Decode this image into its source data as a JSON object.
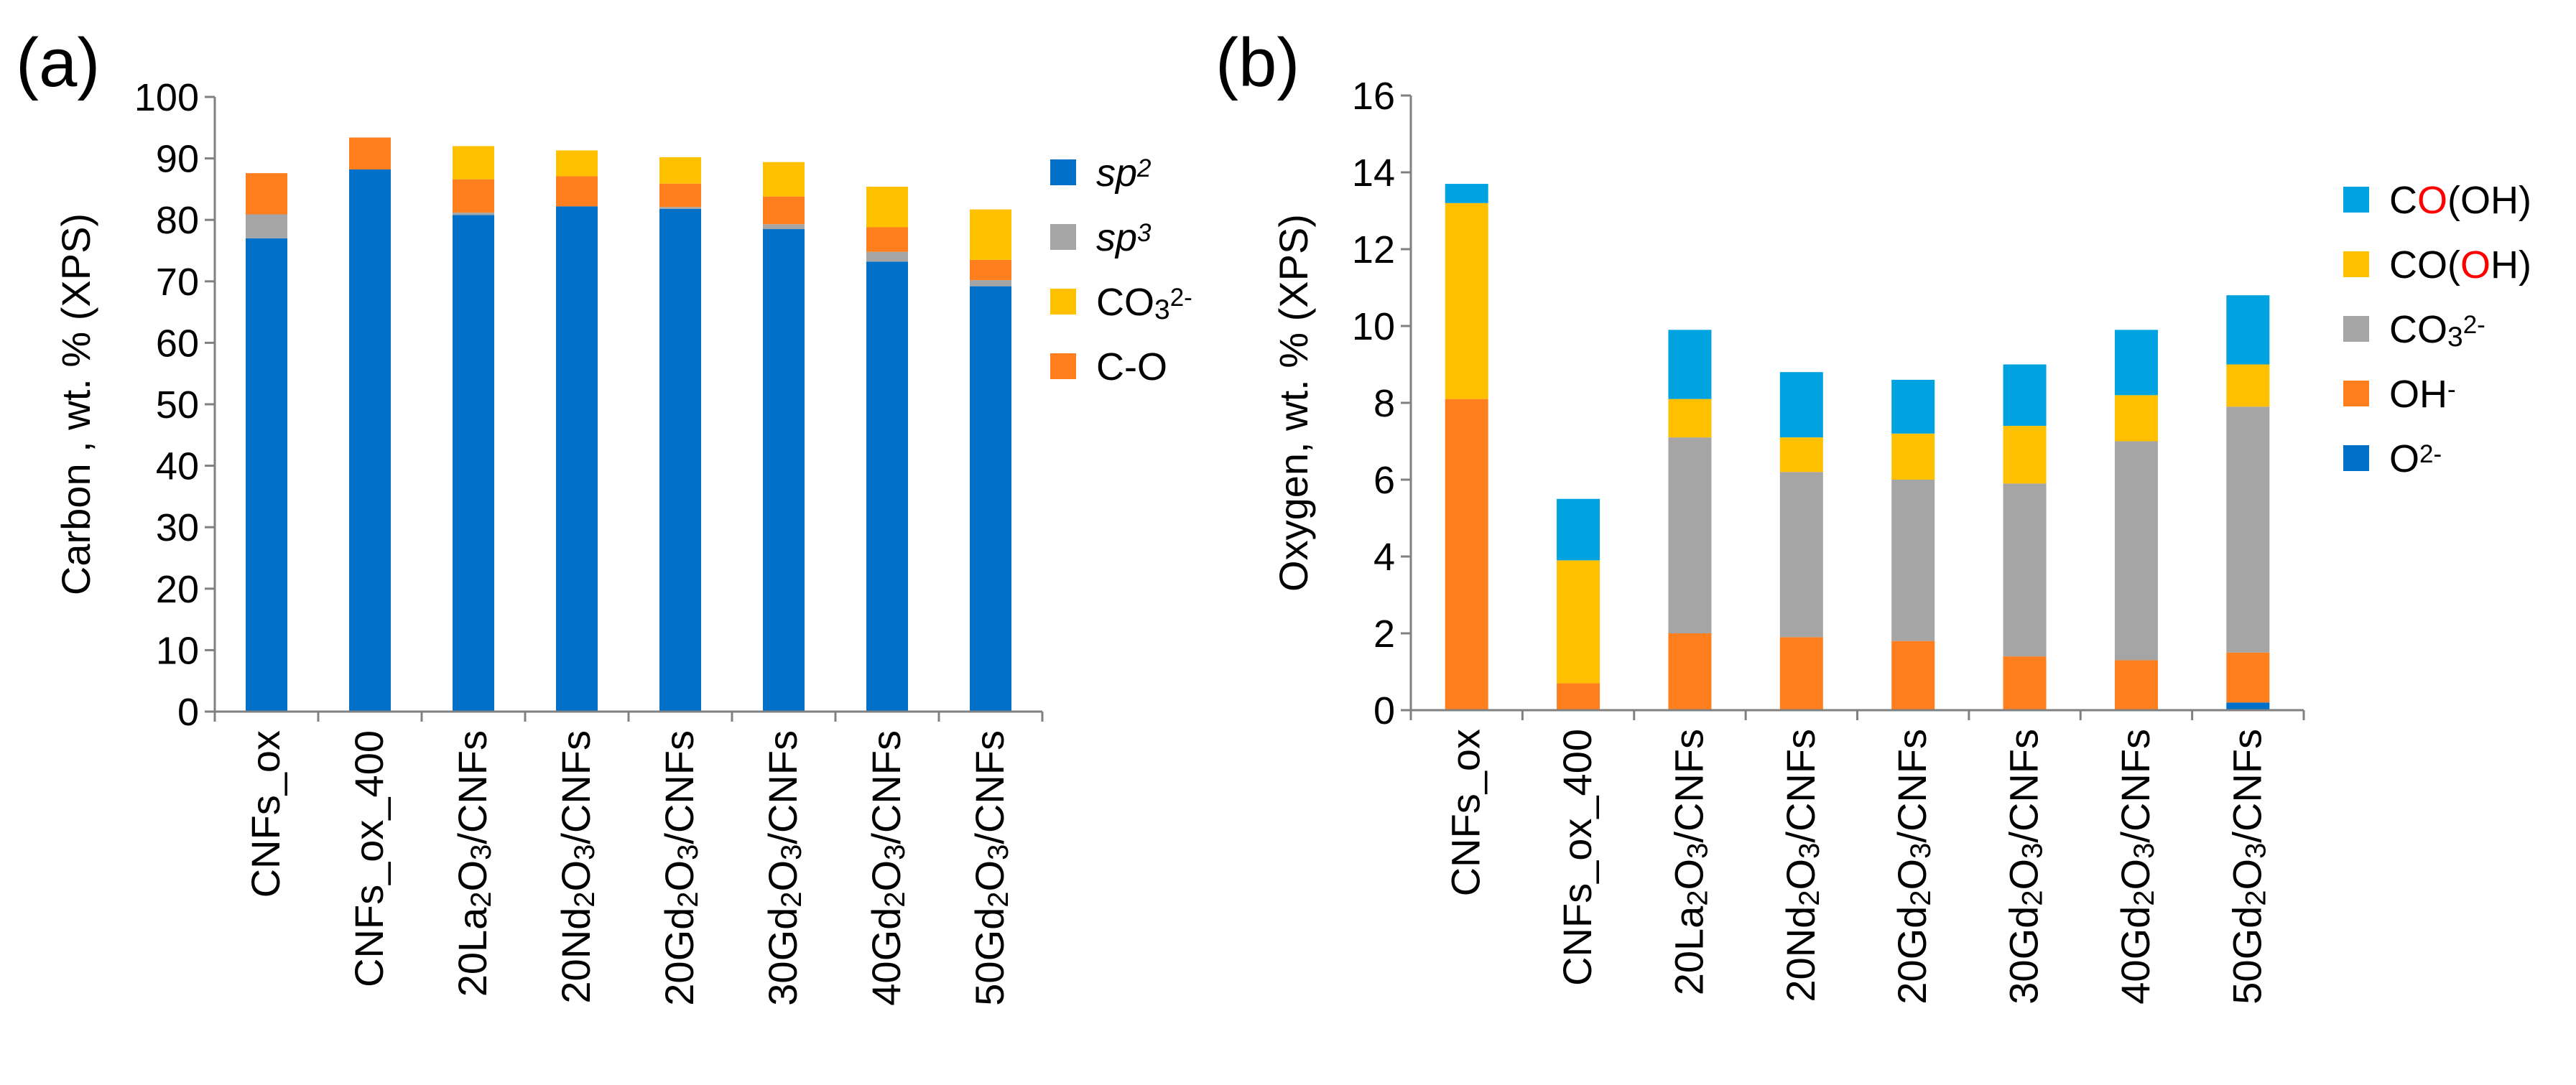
{
  "chart_data": [
    {
      "type": "bar",
      "stacked": true,
      "panel_label": "(a)",
      "ylabel": "Carbon , wt. % (XPS)",
      "ylim": [
        0,
        100
      ],
      "ytick_step": 10,
      "categories": [
        "CNFs_ox",
        "CNFs_ox_400",
        "20La2O3/CNFs",
        "20Nd2O3/CNFs",
        "20Gd2O3/CNFs",
        "30Gd2O3/CNFs",
        "40Gd2O3/CNFs",
        "50Gd2O3/CNFs"
      ],
      "category_labels": [
        [
          {
            "t": "CNFs_ox"
          }
        ],
        [
          {
            "t": "CNFs_ox_400"
          }
        ],
        [
          {
            "t": "20La"
          },
          {
            "t": "2",
            "sub": true
          },
          {
            "t": "O"
          },
          {
            "t": "3",
            "sub": true
          },
          {
            "t": "/CNFs"
          }
        ],
        [
          {
            "t": "20Nd"
          },
          {
            "t": "2",
            "sub": true
          },
          {
            "t": "O"
          },
          {
            "t": "3",
            "sub": true
          },
          {
            "t": "/CNFs"
          }
        ],
        [
          {
            "t": "20Gd"
          },
          {
            "t": "2",
            "sub": true
          },
          {
            "t": "O"
          },
          {
            "t": "3",
            "sub": true
          },
          {
            "t": "/CNFs"
          }
        ],
        [
          {
            "t": "30Gd"
          },
          {
            "t": "2",
            "sub": true
          },
          {
            "t": "O"
          },
          {
            "t": "3",
            "sub": true
          },
          {
            "t": "/CNFs"
          }
        ],
        [
          {
            "t": "40Gd"
          },
          {
            "t": "2",
            "sub": true
          },
          {
            "t": "O"
          },
          {
            "t": "3",
            "sub": true
          },
          {
            "t": "/CNFs"
          }
        ],
        [
          {
            "t": "50Gd"
          },
          {
            "t": "2",
            "sub": true
          },
          {
            "t": "O"
          },
          {
            "t": "3",
            "sub": true
          },
          {
            "t": "/CNFs"
          }
        ]
      ],
      "series": [
        {
          "name": "sp2",
          "color": "#0070c8",
          "values": [
            77.0,
            88.2,
            80.8,
            82.2,
            81.8,
            78.5,
            73.2,
            69.2
          ],
          "legend_parts": [
            {
              "t": "sp",
              "italic": true
            },
            {
              "t": "2",
              "sup": true,
              "italic": true
            }
          ]
        },
        {
          "name": "sp3",
          "color": "#a5a5a5",
          "values": [
            3.9,
            0.0,
            0.4,
            0.0,
            0.3,
            0.8,
            1.6,
            1.0
          ],
          "legend_parts": [
            {
              "t": "sp",
              "italic": true
            },
            {
              "t": "3",
              "sup": true,
              "italic": true
            }
          ]
        },
        {
          "name": "C-O",
          "color": "#ff7f1e",
          "values": [
            6.7,
            5.2,
            5.4,
            4.9,
            3.8,
            4.5,
            4.0,
            3.3
          ],
          "legend_parts": [
            {
              "t": "C-O"
            }
          ]
        },
        {
          "name": "CO32-",
          "color": "#ffc000",
          "values": [
            0.0,
            0.0,
            5.4,
            4.2,
            4.3,
            5.6,
            6.6,
            8.2
          ],
          "legend_parts": [
            {
              "t": "CO"
            },
            {
              "t": "3",
              "sub": true
            },
            {
              "t": "2-",
              "sup": true
            }
          ]
        }
      ],
      "legend_order": [
        "sp2",
        "sp3",
        "CO32-",
        "C-O"
      ]
    },
    {
      "type": "bar",
      "stacked": true,
      "panel_label": "(b)",
      "ylabel": "Oxygen, wt. % (XPS)",
      "ylim": [
        0,
        16
      ],
      "ytick_step": 2,
      "categories": [
        "CNFs_ox",
        "CNFs_ox_400",
        "20La2O3/CNFs",
        "20Nd2O3/CNFs",
        "20Gd2O3/CNFs",
        "30Gd2O3/CNFs",
        "40Gd2O3/CNFs",
        "50Gd2O3/CNFs"
      ],
      "category_labels": [
        [
          {
            "t": "CNFs_ox"
          }
        ],
        [
          {
            "t": "CNFs_ox_400"
          }
        ],
        [
          {
            "t": "20La"
          },
          {
            "t": "2",
            "sub": true
          },
          {
            "t": "O"
          },
          {
            "t": "3",
            "sub": true
          },
          {
            "t": "/CNFs"
          }
        ],
        [
          {
            "t": "20Nd"
          },
          {
            "t": "2",
            "sub": true
          },
          {
            "t": "O"
          },
          {
            "t": "3",
            "sub": true
          },
          {
            "t": "/CNFs"
          }
        ],
        [
          {
            "t": "20Gd"
          },
          {
            "t": "2",
            "sub": true
          },
          {
            "t": "O"
          },
          {
            "t": "3",
            "sub": true
          },
          {
            "t": "/CNFs"
          }
        ],
        [
          {
            "t": "30Gd"
          },
          {
            "t": "2",
            "sub": true
          },
          {
            "t": "O"
          },
          {
            "t": "3",
            "sub": true
          },
          {
            "t": "/CNFs"
          }
        ],
        [
          {
            "t": "40Gd"
          },
          {
            "t": "2",
            "sub": true
          },
          {
            "t": "O"
          },
          {
            "t": "3",
            "sub": true
          },
          {
            "t": "/CNFs"
          }
        ],
        [
          {
            "t": "50Gd"
          },
          {
            "t": "2",
            "sub": true
          },
          {
            "t": "O"
          },
          {
            "t": "3",
            "sub": true
          },
          {
            "t": "/CNFs"
          }
        ]
      ],
      "series": [
        {
          "name": "O2-",
          "color": "#0070c8",
          "values": [
            0.0,
            0.0,
            0.0,
            0.0,
            0.0,
            0.0,
            0.0,
            0.2
          ],
          "legend_parts": [
            {
              "t": "O"
            },
            {
              "t": "2-",
              "sup": true
            }
          ]
        },
        {
          "name": "OH-",
          "color": "#ff7f1e",
          "values": [
            8.1,
            0.7,
            2.0,
            1.9,
            1.8,
            1.4,
            1.3,
            1.3
          ],
          "legend_parts": [
            {
              "t": "OH"
            },
            {
              "t": "-",
              "sup": true
            }
          ]
        },
        {
          "name": "CO32-",
          "color": "#a5a5a5",
          "values": [
            0.0,
            0.0,
            5.1,
            4.3,
            4.2,
            4.5,
            5.7,
            6.4
          ],
          "legend_parts": [
            {
              "t": "CO"
            },
            {
              "t": "3",
              "sub": true
            },
            {
              "t": "2-",
              "sup": true
            }
          ]
        },
        {
          "name": "CO(OH) (hydroxyl O)",
          "color": "#ffc000",
          "values": [
            5.1,
            3.2,
            1.0,
            0.9,
            1.2,
            1.5,
            1.2,
            1.1
          ],
          "legend_parts": [
            {
              "t": "CO("
            },
            {
              "t": "O",
              "color": "#ff0000"
            },
            {
              "t": "H)"
            }
          ]
        },
        {
          "name": "CO(OH) (carbonyl O)",
          "color": "#00a2e0",
          "values": [
            0.5,
            1.6,
            1.8,
            1.7,
            1.4,
            1.6,
            1.7,
            1.8
          ],
          "legend_parts": [
            {
              "t": "C"
            },
            {
              "t": "O",
              "color": "#ff0000"
            },
            {
              "t": "(OH)"
            }
          ]
        }
      ],
      "legend_order": [
        "CO(OH) (carbonyl O)",
        "CO(OH) (hydroxyl O)",
        "CO32-",
        "OH-",
        "O2-"
      ]
    }
  ]
}
